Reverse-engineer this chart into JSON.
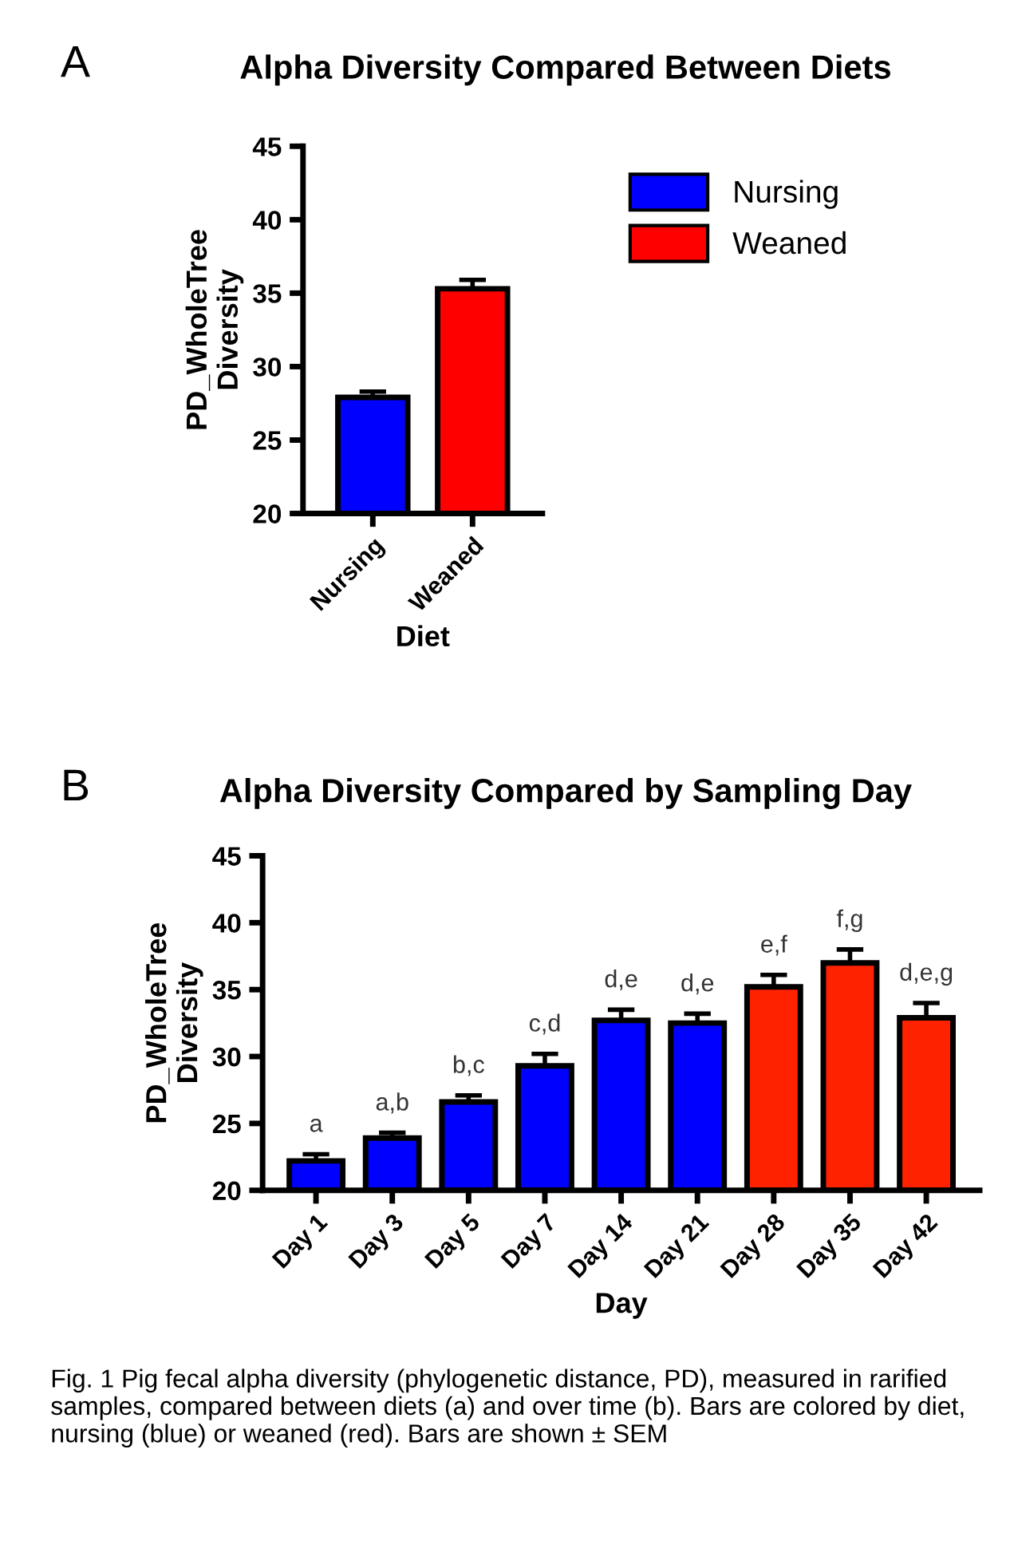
{
  "chart_data": [
    {
      "type": "bar",
      "title": "Alpha Diversity Compared Between Diets",
      "xlabel": "Diet",
      "ylabel": "PD_WholeTree\nDiversity",
      "categories": [
        "Nursing",
        "Weaned"
      ],
      "series": [
        {
          "name": "Nursing",
          "color": "#0000ff",
          "values": [
            27.9,
            null
          ],
          "errors": [
            0.4,
            null
          ]
        },
        {
          "name": "Weaned",
          "color": "#ff0000",
          "values": [
            null,
            35.3
          ],
          "errors": [
            null,
            0.6
          ]
        }
      ],
      "ylim": [
        20,
        45
      ],
      "yticks": [
        20,
        25,
        30,
        35,
        40,
        45
      ],
      "legend": "top right",
      "grid": false,
      "annotations": [
        "A"
      ]
    },
    {
      "type": "bar",
      "title": "Alpha Diversity Compared by Sampling Day",
      "xlabel": "Day",
      "ylabel": "PD_WholeTree\nDiversity",
      "categories": [
        "Day 1",
        "Day 3",
        "Day 5",
        "Day 7",
        "Day 14",
        "Day 21",
        "Day 28",
        "Day 35",
        "Day 42"
      ],
      "values": [
        22.2,
        23.9,
        26.6,
        29.3,
        32.7,
        32.5,
        35.2,
        37.0,
        32.9
      ],
      "errors": [
        0.5,
        0.4,
        0.5,
        0.9,
        0.8,
        0.7,
        0.9,
        1.0,
        1.1
      ],
      "colors": [
        "#0000ff",
        "#0000ff",
        "#0000ff",
        "#0000ff",
        "#0000ff",
        "#0000ff",
        "#ff2200",
        "#ff2200",
        "#ff2200"
      ],
      "value_labels": [
        "a",
        "a,b",
        "b,c",
        "c,d",
        "d,e",
        "d,e",
        "e,f",
        "f,g",
        "d,e,g"
      ],
      "ylim": [
        20,
        45
      ],
      "yticks": [
        20,
        25,
        30,
        35,
        40,
        45
      ],
      "legend": false,
      "grid": false,
      "annotations": [
        "B",
        "Fig. 1 Pig fecal alpha diversity (phylogenetic distance, PD), measured in rarified samples, compared between diets (a) and over time (b). Bars are colored by diet, nursing (blue) or weaned (red). Bars are shown ± SEM"
      ]
    }
  ]
}
